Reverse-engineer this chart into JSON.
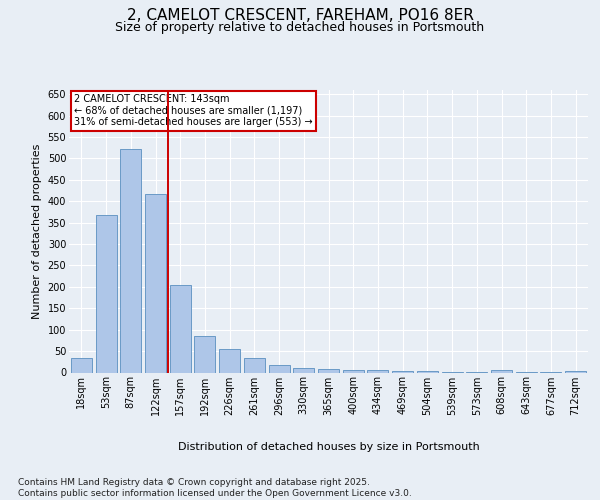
{
  "title": "2, CAMELOT CRESCENT, FAREHAM, PO16 8ER",
  "subtitle": "Size of property relative to detached houses in Portsmouth",
  "xlabel": "Distribution of detached houses by size in Portsmouth",
  "ylabel": "Number of detached properties",
  "categories": [
    "18sqm",
    "53sqm",
    "87sqm",
    "122sqm",
    "157sqm",
    "192sqm",
    "226sqm",
    "261sqm",
    "296sqm",
    "330sqm",
    "365sqm",
    "400sqm",
    "434sqm",
    "469sqm",
    "504sqm",
    "539sqm",
    "573sqm",
    "608sqm",
    "643sqm",
    "677sqm",
    "712sqm"
  ],
  "values": [
    35,
    368,
    522,
    418,
    205,
    85,
    55,
    35,
    18,
    10,
    8,
    7,
    5,
    4,
    3,
    2,
    1,
    5,
    1,
    1,
    4
  ],
  "bar_color": "#aec6e8",
  "bar_edge_color": "#5a8fc0",
  "vline_x_index": 3.5,
  "vline_color": "#cc0000",
  "annotation_text": "2 CAMELOT CRESCENT: 143sqm\n← 68% of detached houses are smaller (1,197)\n31% of semi-detached houses are larger (553) →",
  "annotation_box_color": "#ffffff",
  "annotation_box_edgecolor": "#cc0000",
  "ylim": [
    0,
    660
  ],
  "yticks": [
    0,
    50,
    100,
    150,
    200,
    250,
    300,
    350,
    400,
    450,
    500,
    550,
    600,
    650
  ],
  "bg_color": "#e8eef5",
  "plot_bg_color": "#e8eef5",
  "title_fontsize": 11,
  "subtitle_fontsize": 9,
  "axis_fontsize": 8,
  "tick_fontsize": 7,
  "annotation_fontsize": 7,
  "footer_text": "Contains HM Land Registry data © Crown copyright and database right 2025.\nContains public sector information licensed under the Open Government Licence v3.0.",
  "footer_fontsize": 6.5
}
